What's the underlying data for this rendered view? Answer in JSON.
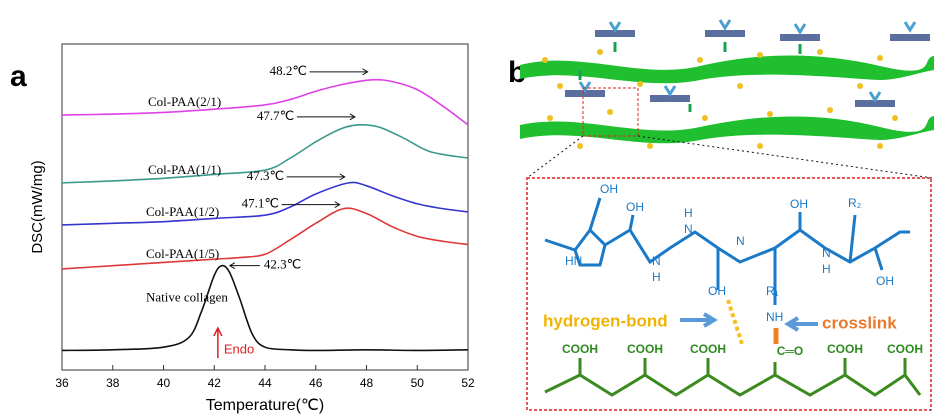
{
  "chart_data": {
    "type": "line",
    "panel_label": "a",
    "xlabel": "Temperature(℃)",
    "ylabel": "DSC(mW/mg)",
    "xlim": [
      36,
      52
    ],
    "xticks": [
      36,
      38,
      40,
      42,
      44,
      46,
      48,
      50,
      52
    ],
    "ylim": [
      0,
      10
    ],
    "series": [
      {
        "name": "Col-PAA(2/1)",
        "color": "#e040e8",
        "x": [
          36,
          38,
          40,
          42,
          44,
          45,
          46,
          47,
          48.2,
          49,
          50,
          51,
          52
        ],
        "values": [
          7.82,
          7.85,
          7.9,
          8.0,
          8.13,
          8.3,
          8.55,
          8.75,
          8.9,
          8.85,
          8.6,
          8.1,
          7.52
        ]
      },
      {
        "name": "Col-PAA(1/1)",
        "color": "#3a9a8c",
        "x": [
          36,
          38,
          40,
          42,
          44,
          45,
          46,
          47,
          47.7,
          48.5,
          49.5,
          50.5,
          52
        ],
        "values": [
          5.74,
          5.8,
          5.88,
          6.0,
          6.13,
          6.5,
          7.0,
          7.4,
          7.52,
          7.45,
          7.1,
          6.7,
          6.5
        ]
      },
      {
        "name": "Col-PAA(1/2)",
        "color": "#3535d0",
        "x": [
          36,
          38,
          40,
          42,
          44,
          45,
          46,
          47.3,
          48,
          49,
          50,
          51,
          52
        ],
        "values": [
          4.45,
          4.5,
          4.55,
          4.65,
          4.75,
          5.0,
          5.4,
          5.74,
          5.65,
          5.35,
          5.1,
          4.95,
          4.85
        ]
      },
      {
        "name": "Col-PAA(1/5)",
        "color": "#e03838",
        "x": [
          36,
          38,
          40,
          42,
          43,
          44,
          45,
          46,
          47.1,
          48,
          49,
          50,
          51,
          52
        ],
        "values": [
          3.1,
          3.2,
          3.3,
          3.4,
          3.45,
          3.55,
          4.0,
          4.5,
          4.95,
          4.8,
          4.4,
          4.1,
          3.95,
          3.85
        ]
      },
      {
        "name": "Native collagen",
        "color": "#111111",
        "x": [
          36,
          38,
          40,
          41,
          41.5,
          42,
          42.3,
          42.6,
          43,
          43.5,
          44,
          45,
          46,
          48,
          50,
          52
        ],
        "values": [
          0.6,
          0.62,
          0.7,
          1.0,
          1.8,
          2.9,
          3.2,
          3.0,
          2.2,
          1.1,
          0.7,
          0.62,
          0.6,
          0.62,
          0.6,
          0.62
        ]
      }
    ],
    "annotations": [
      "48.2℃",
      "47.7℃",
      "47.3℃",
      "47.1℃",
      "42.3℃"
    ],
    "marker_label": "Endo"
  },
  "diagram": {
    "panel_label": "b",
    "labels": [
      "hydrogen-bond",
      "crosslink"
    ],
    "groups": [
      "COOH",
      "COOH",
      "COOH",
      "COOH",
      "COOH"
    ],
    "carbonyl": "C═O",
    "atoms": [
      "OH",
      "OH",
      "H",
      "N",
      "OH",
      "R₂",
      "HN",
      "N",
      "H",
      "N",
      "N",
      "H",
      "OH",
      "OH",
      "R₁",
      "NH"
    ]
  }
}
